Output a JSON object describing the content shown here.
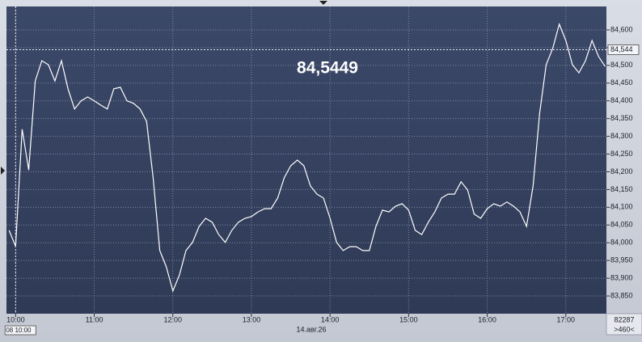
{
  "chart_data": {
    "type": "line",
    "last_price": "84,5449",
    "cursor_price": {
      "value": 84544,
      "label": "84,544"
    },
    "cursor_time": "08 10:00",
    "date_label": "14.авг.26",
    "volume_label": "82287",
    "range_label": ">460<",
    "x": [
      "09:55",
      "10:00",
      "10:05",
      "10:10",
      "10:15",
      "10:20",
      "10:25",
      "10:30",
      "10:35",
      "10:40",
      "10:45",
      "10:50",
      "10:55",
      "11:00",
      "11:05",
      "11:10",
      "11:15",
      "11:20",
      "11:25",
      "11:30",
      "11:35",
      "11:40",
      "11:45",
      "11:50",
      "11:55",
      "12:00",
      "12:05",
      "12:10",
      "12:15",
      "12:20",
      "12:25",
      "12:30",
      "12:35",
      "12:40",
      "12:45",
      "12:50",
      "12:55",
      "13:00",
      "13:05",
      "13:10",
      "13:15",
      "13:20",
      "13:25",
      "13:30",
      "13:35",
      "13:40",
      "13:45",
      "13:50",
      "13:55",
      "14:00",
      "14:05",
      "14:10",
      "14:15",
      "14:20",
      "14:25",
      "14:30",
      "14:35",
      "14:40",
      "14:45",
      "14:50",
      "14:55",
      "15:00",
      "15:05",
      "15:10",
      "15:15",
      "15:20",
      "15:25",
      "15:30",
      "15:35",
      "15:40",
      "15:45",
      "15:50",
      "15:55",
      "16:00",
      "16:05",
      "16:10",
      "16:15",
      "16:20",
      "16:25",
      "16:30",
      "16:35",
      "16:40",
      "16:45",
      "16:50",
      "16:55",
      "17:00",
      "17:05",
      "17:10",
      "17:15",
      "17:20",
      "17:25",
      "17:30"
    ],
    "series": [
      {
        "color": "#ffffff",
        "values": [
          84035,
          83990,
          84320,
          84205,
          84456,
          84513,
          84502,
          84456,
          84513,
          84434,
          84377,
          84400,
          84411,
          84400,
          84388,
          84377,
          84434,
          84438,
          84400,
          84393,
          84377,
          84342,
          84183,
          83978,
          83932,
          83864,
          83909,
          83978,
          84001,
          84046,
          84069,
          84058,
          84023,
          84001,
          84035,
          84058,
          84069,
          84074,
          84087,
          84096,
          84096,
          84126,
          84183,
          84217,
          84233,
          84217,
          84160,
          84137,
          84126,
          84069,
          84001,
          83978,
          83989,
          83989,
          83978,
          83978,
          84046,
          84092,
          84087,
          84103,
          84110,
          84092,
          84035,
          84023,
          84058,
          84087,
          84126,
          84137,
          84137,
          84172,
          84149,
          84081,
          84069,
          84096,
          84110,
          84103,
          84115,
          84103,
          84087,
          84046,
          84160,
          84365,
          84502,
          84548,
          84616,
          84570,
          84502,
          84479,
          84513,
          84570,
          84525,
          84497
        ]
      }
    ],
    "xlim": [
      "09:53",
      "17:31"
    ],
    "xticks": [
      "10:00",
      "11:00",
      "12:00",
      "13:00",
      "14:00",
      "15:00",
      "16:00",
      "17:00"
    ],
    "ylim": [
      83800,
      84666
    ],
    "yticks": [
      {
        "value": 83850,
        "label": "83,850"
      },
      {
        "value": 83900,
        "label": "83,900"
      },
      {
        "value": 83950,
        "label": "83,950"
      },
      {
        "value": 84000,
        "label": "84,000"
      },
      {
        "value": 84050,
        "label": "84,050"
      },
      {
        "value": 84100,
        "label": "84,100"
      },
      {
        "value": 84150,
        "label": "84,150"
      },
      {
        "value": 84200,
        "label": "84,200"
      },
      {
        "value": 84250,
        "label": "84,250"
      },
      {
        "value": 84300,
        "label": "84,300"
      },
      {
        "value": 84350,
        "label": "84,350"
      },
      {
        "value": 84400,
        "label": "84,400"
      },
      {
        "value": 84450,
        "label": "84,450"
      },
      {
        "value": 84500,
        "label": "84,500"
      },
      {
        "value": 84550,
        "label": "84,550"
      },
      {
        "value": 84600,
        "label": "84,600"
      }
    ],
    "grid": true
  }
}
